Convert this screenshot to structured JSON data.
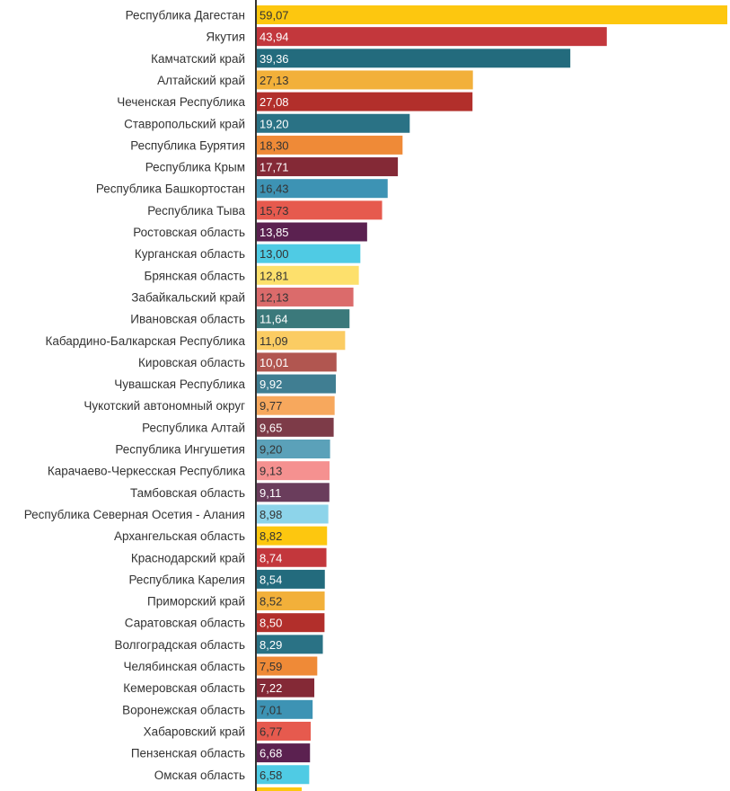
{
  "chart_data": {
    "type": "bar",
    "orientation": "horizontal",
    "categories": [
      "Республика Дагестан",
      "Якутия",
      "Камчатский край",
      "Алтайский край",
      "Чеченская Республика",
      "Ставропольский край",
      "Республика Бурятия",
      "Республика Крым",
      "Республика Башкортостан",
      "Республика Тыва",
      "Ростовская область",
      "Курганская область",
      "Брянская область",
      "Забайкальский край",
      "Ивановская область",
      "Кабардино-Балкарская Республика",
      "Кировская область",
      "Чувашская Республика",
      "Чукотский автономный округ",
      "Республика Алтай",
      "Республика Ингушетия",
      "Карачаево-Черкесская Республика",
      "Тамбовская область",
      "Республика Северная Осетия - Алания",
      "Архангельская область",
      "Краснодарский край",
      "Республика Карелия",
      "Приморский край",
      "Саратовская область",
      "Волгоградская область",
      "Челябинская область",
      "Кемеровская область",
      "Воронежская область",
      "Хабаровский край",
      "Пензенская область",
      "Омская область"
    ],
    "values": [
      59.07,
      43.94,
      39.36,
      27.13,
      27.08,
      19.2,
      18.3,
      17.71,
      16.43,
      15.73,
      13.85,
      13.0,
      12.81,
      12.13,
      11.64,
      11.09,
      10.01,
      9.92,
      9.77,
      9.65,
      9.2,
      9.13,
      9.11,
      8.98,
      8.82,
      8.74,
      8.54,
      8.52,
      8.5,
      8.29,
      7.59,
      7.22,
      7.01,
      6.77,
      6.68,
      6.58
    ],
    "value_labels": [
      "59,07",
      "43,94",
      "39,36",
      "27,13",
      "27,08",
      "19,20",
      "18,30",
      "17,71",
      "16,43",
      "15,73",
      "13,85",
      "13,00",
      "12,81",
      "12,13",
      "11,64",
      "11,09",
      "10,01",
      "9,92",
      "9,77",
      "9,65",
      "9,20",
      "9,13",
      "9,11",
      "8,98",
      "8,82",
      "8,74",
      "8,54",
      "8,52",
      "8,50",
      "8,29",
      "7,59",
      "7,22",
      "7,01",
      "6,77",
      "6,68",
      "6,58"
    ],
    "colors": [
      "#fdc70f",
      "#c3373c",
      "#236b7d",
      "#f2b03a",
      "#b22f2b",
      "#2a7285",
      "#ef8a37",
      "#842936",
      "#3d93b4",
      "#e65a4e",
      "#5b2150",
      "#4fcbe4",
      "#fde06c",
      "#db6b6b",
      "#3b797b",
      "#fbcc63",
      "#b15650",
      "#407e92",
      "#f7a85d",
      "#7d3b48",
      "#5ba1b9",
      "#f59190",
      "#6a3d5c",
      "#8dd4ea",
      "#fdc70f",
      "#c3373c",
      "#236b7d",
      "#f2b03a",
      "#b22f2b",
      "#2a7285",
      "#ef8a37",
      "#842936",
      "#3d93b4",
      "#e65a4e",
      "#5b2150",
      "#4fcbe4"
    ],
    "label_colors": [
      "#333333",
      "#ffffff",
      "#ffffff",
      "#333333",
      "#ffffff",
      "#ffffff",
      "#333333",
      "#ffffff",
      "#333333",
      "#333333",
      "#ffffff",
      "#333333",
      "#333333",
      "#333333",
      "#ffffff",
      "#333333",
      "#ffffff",
      "#ffffff",
      "#333333",
      "#ffffff",
      "#333333",
      "#333333",
      "#ffffff",
      "#333333",
      "#333333",
      "#ffffff",
      "#ffffff",
      "#333333",
      "#ffffff",
      "#ffffff",
      "#333333",
      "#ffffff",
      "#333333",
      "#333333",
      "#ffffff",
      "#333333"
    ],
    "axis_color": "#333333",
    "xlim": [
      0,
      59.07
    ],
    "title": "",
    "xlabel": "",
    "ylabel": "",
    "grid": false
  }
}
